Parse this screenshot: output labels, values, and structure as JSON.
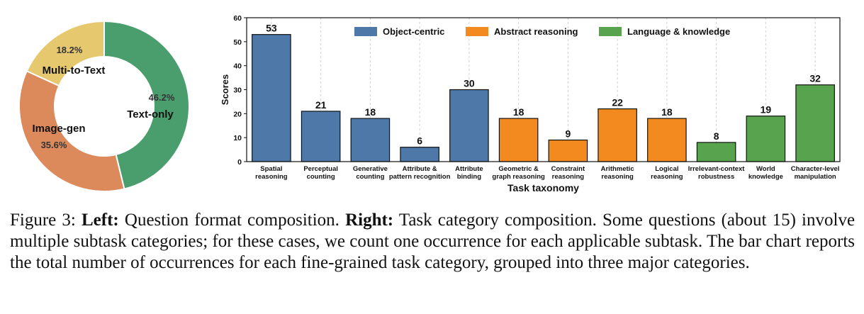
{
  "chart_data": [
    {
      "type": "pie",
      "donut": true,
      "slices": [
        {
          "label": "Text-only",
          "value": 46.2,
          "pct_label": "46.2%",
          "color": "#4a9e6e"
        },
        {
          "label": "Image-gen",
          "value": 35.6,
          "pct_label": "35.6%",
          "color": "#dc8a5b"
        },
        {
          "label": "Multi-to-Text",
          "value": 18.2,
          "pct_label": "18.2%",
          "color": "#e6c96e"
        }
      ]
    },
    {
      "type": "bar",
      "categories": [
        "Spatial\nreasoning",
        "Perceptual\ncounting",
        "Generative\ncounting",
        "Attribute &\npattern recognition",
        "Attribute\nbinding",
        "Geometric &\ngraph reasoning",
        "Constraint\nreasoning",
        "Arithmetic\nreasoning",
        "Logical\nreasoning",
        "Irrelevant-context\nrobustness",
        "World\nknowledge",
        "Character-level\nmanipulation"
      ],
      "values": [
        53,
        21,
        18,
        6,
        30,
        18,
        9,
        22,
        18,
        8,
        19,
        32
      ],
      "groups": [
        0,
        0,
        0,
        0,
        0,
        1,
        1,
        1,
        1,
        2,
        2,
        2
      ],
      "legend": [
        {
          "name": "Object-centric",
          "color": "#4d78a8"
        },
        {
          "name": "Abstract reasoning",
          "color": "#f28a1f"
        },
        {
          "name": "Language & knowledge",
          "color": "#58a34d"
        }
      ],
      "legend_position": "top",
      "xlabel": "Task taxonomy",
      "ylabel": "Scores",
      "ylim": [
        0,
        60
      ],
      "yticks": [
        0,
        10,
        20,
        30,
        40,
        50,
        60
      ],
      "grid": "vertical dashed"
    }
  ],
  "caption": {
    "label": "Figure 3:",
    "left_label": "Left:",
    "left_text": "Question format composition.",
    "right_label": "Right:",
    "right_text": "Task category composition. Some questions (about 15) involve multiple subtask categories; for these cases, we count one occurrence for each applicable subtask. The bar chart reports the total number of occurrences for each fine-grained task category, grouped into three major categories."
  }
}
